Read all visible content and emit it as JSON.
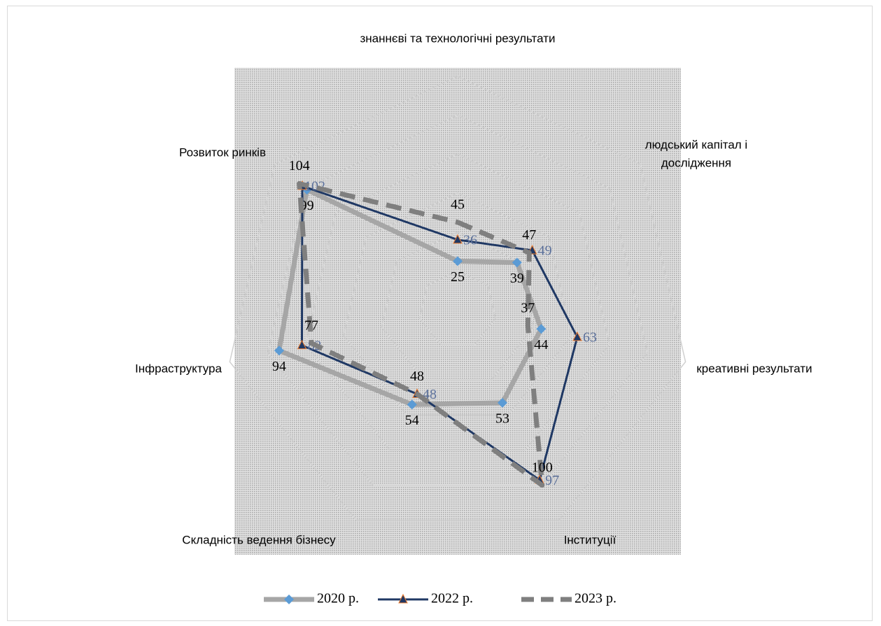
{
  "chart_data": {
    "type": "radar",
    "categories": [
      "знаннєві та технологічні результати",
      "людський капітал і дослідження",
      "креативні результати",
      "Інституції",
      "Складність ведення бізнесу",
      "Інфраструктура",
      "Розвиток ринків"
    ],
    "series": [
      {
        "name": "2020 р.",
        "color": "#5b9bd5",
        "values": [
          25,
          39,
          44,
          53,
          54,
          94,
          99
        ]
      },
      {
        "name": "2022 р.",
        "color": "#1f3864",
        "values": [
          36,
          49,
          63,
          97,
          48,
          82,
          102
        ]
      },
      {
        "name": "2023 р.",
        "color": "#7f7f7f",
        "values": [
          45,
          47,
          37,
          100,
          48,
          77,
          104
        ]
      }
    ],
    "ylim": [
      0,
      120
    ]
  }
}
